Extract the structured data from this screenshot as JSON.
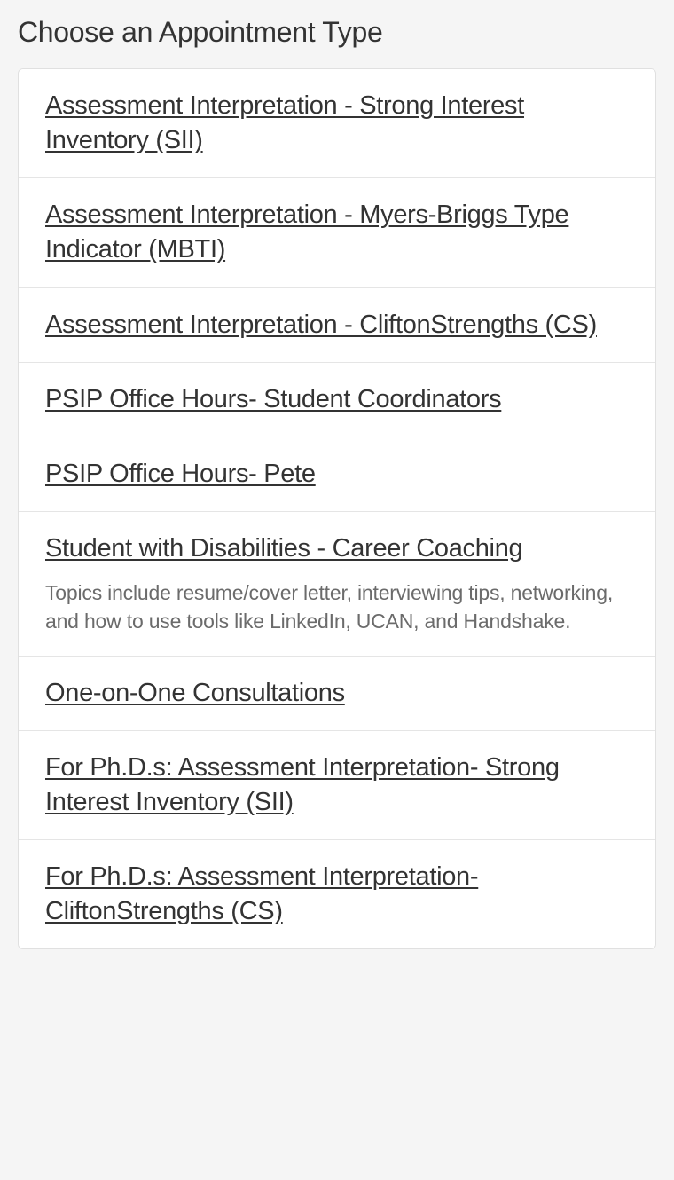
{
  "page": {
    "title": "Choose an Appointment Type"
  },
  "colors": {
    "background": "#f5f5f5",
    "card_background": "#ffffff",
    "border": "#e0e0e0",
    "divider": "#e5e5e5",
    "text_primary": "#333333",
    "text_secondary": "#6b6b6b"
  },
  "appointments": [
    {
      "title": "Assessment Interpretation - Strong Interest Inventory (SII)",
      "description": null
    },
    {
      "title": "Assessment Interpretation - Myers-Briggs Type Indicator (MBTI)",
      "description": null
    },
    {
      "title": "Assessment Interpretation - CliftonStrengths (CS)",
      "description": null
    },
    {
      "title": "PSIP Office Hours- Student Coordinators",
      "description": null
    },
    {
      "title": "PSIP Office Hours- Pete",
      "description": null
    },
    {
      "title": "Student with Disabilities - Career Coaching",
      "description": "Topics include resume/cover letter, interviewing tips, networking, and how to use tools like LinkedIn, UCAN, and Handshake."
    },
    {
      "title": "One-on-One Consultations",
      "description": null
    },
    {
      "title": "For Ph.D.s: Assessment Interpretation- Strong Interest Inventory (SII)",
      "description": null
    },
    {
      "title": "For Ph.D.s: Assessment Interpretation- CliftonStrengths (CS)",
      "description": null
    }
  ]
}
